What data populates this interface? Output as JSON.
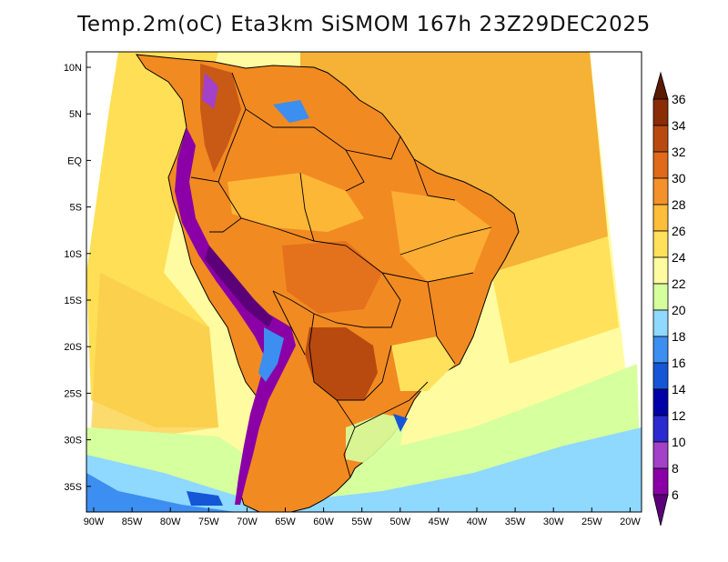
{
  "title": "Temp.2m(oC) Eta3km SiSMOM 167h 23Z29DEC2025",
  "map": {
    "lat_labels": [
      "10N",
      "5N",
      "EQ",
      "5S",
      "10S",
      "15S",
      "20S",
      "25S",
      "30S",
      "35S"
    ],
    "lon_labels": [
      "90W",
      "85W",
      "80W",
      "75W",
      "70W",
      "65W",
      "60W",
      "55W",
      "50W",
      "45W",
      "40W",
      "35W",
      "30W",
      "25W",
      "20W"
    ]
  },
  "colorbar": {
    "levels": [
      "6",
      "8",
      "10",
      "12",
      "14",
      "16",
      "18",
      "20",
      "22",
      "24",
      "26",
      "28",
      "30",
      "32",
      "34",
      "36"
    ],
    "colors": [
      "#5c0079",
      "#8a00a6",
      "#a341c8",
      "#2a2ad0",
      "#0000a8",
      "#1456d6",
      "#3c8ef0",
      "#8fd8ff",
      "#d6ff9e",
      "#fffba0",
      "#ffe15c",
      "#ffbe3a",
      "#f5912a",
      "#e06a1a",
      "#b84a10",
      "#8a2c06",
      "#5a1a04"
    ]
  },
  "regions": [
    {
      "name": "atlantic-north",
      "color": "#f5b236"
    },
    {
      "name": "atlantic-south",
      "color": "#fffba0"
    },
    {
      "name": "pacific",
      "color": "#ffdf55"
    },
    {
      "name": "south-cold-water",
      "color": "#8fd8ff"
    },
    {
      "name": "continent",
      "color": "#f28a22"
    },
    {
      "name": "andes",
      "color": "#8a00a6"
    },
    {
      "name": "hot-core",
      "color": "#b84a10"
    }
  ]
}
